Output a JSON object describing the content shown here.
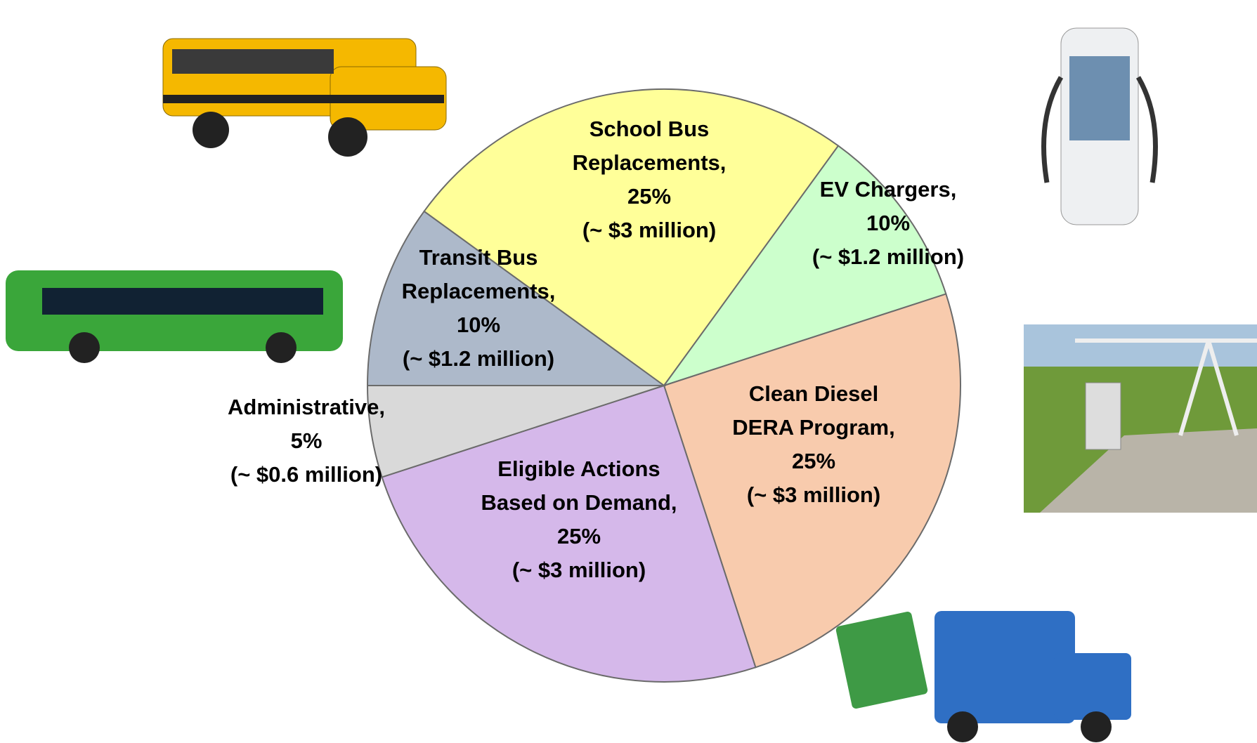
{
  "chart_data": {
    "type": "pie",
    "categories": [
      "School Bus Replacements,",
      "EV Chargers,",
      "Clean Diesel DERA Program,",
      "Eligible Actions Based on Demand,",
      "Administrative,",
      "Transit Bus Replacements,"
    ],
    "values": [
      25,
      10,
      25,
      25,
      5,
      10
    ],
    "value_labels": [
      "25%",
      "10%",
      "25%",
      "25%",
      "5%",
      "10%"
    ],
    "amounts": [
      "(~ $3 million)",
      "(~ $1.2 million)",
      "(~ $3 million)",
      "(~ $3 million)",
      "(~ $0.6 million)",
      "(~ $1.2 million)"
    ],
    "colors": [
      "#ffff99",
      "#ccffcc",
      "#f8cbad",
      "#d5b8ea",
      "#d9d9d9",
      "#adb9ca"
    ]
  }
}
